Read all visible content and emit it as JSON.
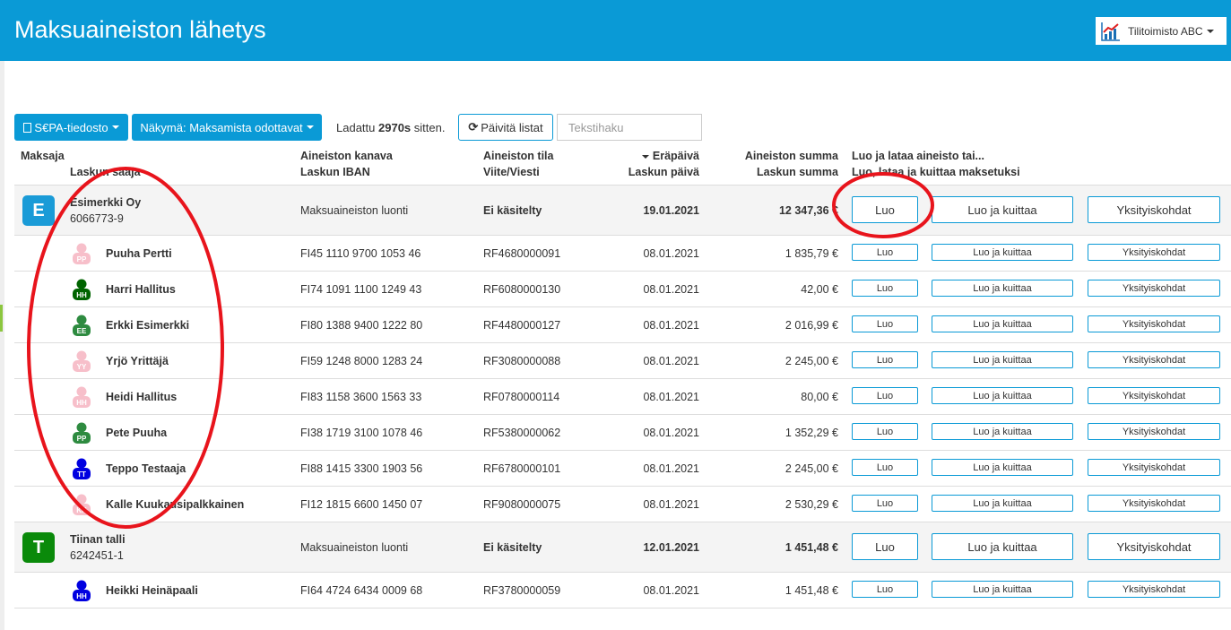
{
  "header": {
    "title": "Maksuaineiston lähetys",
    "org": "Tilitoimisto ABC",
    "org_icon": "chart-icon"
  },
  "toolbar": {
    "sepa": "S€PA-tiedosto",
    "view": "Näkymä: Maksamista odottavat",
    "loaded_prefix": "Ladattu ",
    "loaded_value": "2970s",
    "loaded_suffix": " sitten.",
    "refresh": "Päivitä listat",
    "search_placeholder": "Tekstihaku"
  },
  "columns": {
    "payer": "Maksaja",
    "recipient": "Laskun saaja",
    "channel": "Aineiston kanava",
    "iban": "Laskun IBAN",
    "status": "Aineiston tila",
    "ref": "Viite/Viesti",
    "due": "Eräpäivä",
    "invoice_date": "Laskun päivä",
    "batch_sum": "Aineiston summa",
    "invoice_sum": "Laskun summa",
    "action1": "Luo ja lataa aineisto tai...",
    "action2": "Luo, lataa ja kuittaa maksetuksi"
  },
  "actions": {
    "create": "Luo",
    "create_ack": "Luo ja kuittaa",
    "details": "Yksityiskohdat"
  },
  "groups": [
    {
      "initial": "E",
      "color": "#1a9bd7",
      "name": "Esimerkki Oy",
      "id": "6066773-9",
      "channel": "Maksuaineiston luonti",
      "status": "Ei käsitelty",
      "due": "19.01.2021",
      "sum": "12 347,36 €",
      "items": [
        {
          "initials": "PP",
          "color": "#f7bfca",
          "name": "Puuha Pertti",
          "iban": "FI45 1110 9700 1053 46",
          "ref": "RF4680000091",
          "date": "08.01.2021",
          "sum": "1 835,79 €"
        },
        {
          "initials": "HH",
          "color": "#006400",
          "name": "Harri Hallitus",
          "iban": "FI74 1091 1100 1249 43",
          "ref": "RF6080000130",
          "date": "08.01.2021",
          "sum": "42,00 €"
        },
        {
          "initials": "EE",
          "color": "#2e8b40",
          "name": "Erkki Esimerkki",
          "iban": "FI80 1388 9400 1222 80",
          "ref": "RF4480000127",
          "date": "08.01.2021",
          "sum": "2 016,99 €"
        },
        {
          "initials": "YY",
          "color": "#f7bfca",
          "name": "Yrjö Yrittäjä",
          "iban": "FI59 1248 8000 1283 24",
          "ref": "RF3080000088",
          "date": "08.01.2021",
          "sum": "2 245,00 €"
        },
        {
          "initials": "HH",
          "color": "#f7bfca",
          "name": "Heidi Hallitus",
          "iban": "FI83 1158 3600 1563 33",
          "ref": "RF0780000114",
          "date": "08.01.2021",
          "sum": "80,00 €"
        },
        {
          "initials": "PP",
          "color": "#2e8b40",
          "name": "Pete Puuha",
          "iban": "FI38 1719 3100 1078 46",
          "ref": "RF5380000062",
          "date": "08.01.2021",
          "sum": "1 352,29 €"
        },
        {
          "initials": "TT",
          "color": "#0000e0",
          "name": "Teppo Testaaja",
          "iban": "FI88 1415 3300 1903 56",
          "ref": "RF6780000101",
          "date": "08.01.2021",
          "sum": "2 245,00 €"
        },
        {
          "initials": "KK",
          "color": "#f7bfca",
          "name": "Kalle Kuukausipalkkainen",
          "iban": "FI12 1815 6600 1450 07",
          "ref": "RF9080000075",
          "date": "08.01.2021",
          "sum": "2 530,29 €"
        }
      ]
    },
    {
      "initial": "T",
      "color": "#0a8a0a",
      "name": "Tiinan talli",
      "id": "6242451-1",
      "channel": "Maksuaineiston luonti",
      "status": "Ei käsitelty",
      "due": "12.01.2021",
      "sum": "1 451,48 €",
      "items": [
        {
          "initials": "HH",
          "color": "#0000e0",
          "name": "Heikki Heinäpaali",
          "iban": "FI64 4724 6434 0009 68",
          "ref": "RF3780000059",
          "date": "08.01.2021",
          "sum": "1 451,48 €"
        }
      ]
    }
  ],
  "annotation_color": "#e8141c"
}
